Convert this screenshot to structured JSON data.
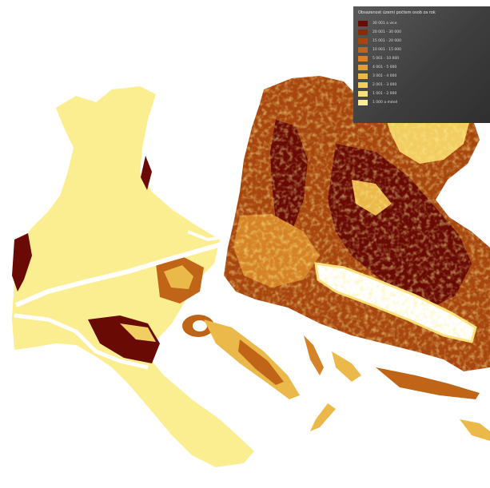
{
  "map": {
    "classes": [
      {
        "label": "30 001 a více",
        "color": "#6a0a05"
      },
      {
        "label": "20 001 - 30 000",
        "color": "#8a2a0a"
      },
      {
        "label": "15 001 - 20 000",
        "color": "#a8460f"
      },
      {
        "label": "10 001 - 15 000",
        "color": "#c06418"
      },
      {
        "label": "5 001 - 10 000",
        "color": "#d68226"
      },
      {
        "label": "4 001 - 5 000",
        "color": "#e29e36"
      },
      {
        "label": "3 001 - 4 000",
        "color": "#ebb84a"
      },
      {
        "label": "2 001 - 3 000",
        "color": "#f2cd62"
      },
      {
        "label": "1 001 - 2 000",
        "color": "#f7df7a"
      },
      {
        "label": "1 000 a méně",
        "color": "#fbee90"
      }
    ],
    "background_color": "#ffffff"
  },
  "legend": {
    "title": "Obsazenost území počtem osob za rok"
  }
}
